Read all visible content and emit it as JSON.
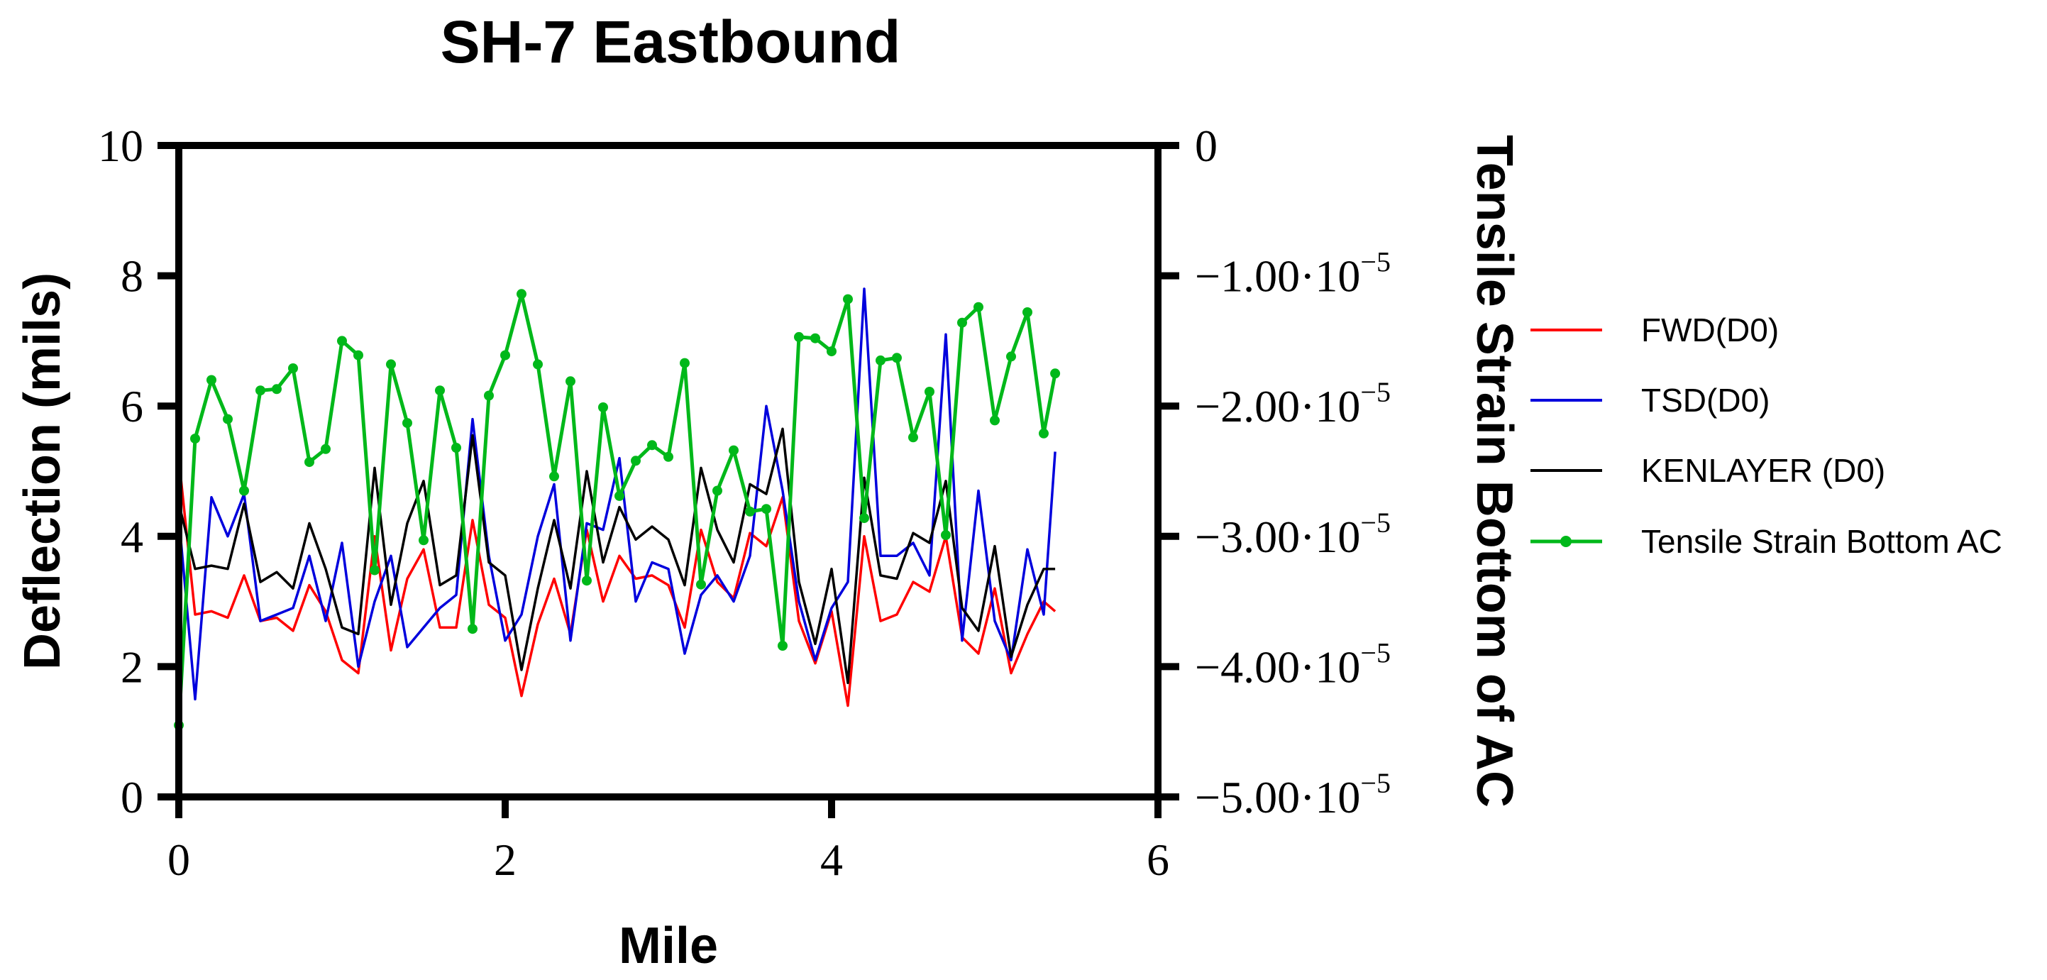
{
  "chart_data": {
    "type": "line",
    "title": "SH-7 Eastbound",
    "xlabel": "Mile",
    "ylabel": "Deflection (mils)",
    "y2label": "Tensile Strain Bottom of AC",
    "xlim": [
      0,
      6
    ],
    "ylim": [
      0,
      10
    ],
    "y2lim": [
      -5e-05,
      0
    ],
    "x_ticks": [
      "0",
      "2",
      "4",
      "6"
    ],
    "y_ticks": [
      "0",
      "2",
      "4",
      "6",
      "8",
      "10"
    ],
    "y2_ticks": [
      {
        "value": 0,
        "mant": "0",
        "exp": ""
      },
      {
        "value": -1e-05,
        "mant": "−1.00·10",
        "exp": "−5"
      },
      {
        "value": -2e-05,
        "mant": "−2.00·10",
        "exp": "−5"
      },
      {
        "value": -3e-05,
        "mant": "−3.00·10",
        "exp": "−5"
      },
      {
        "value": -4e-05,
        "mant": "−4.00·10",
        "exp": "−5"
      },
      {
        "value": -5e-05,
        "mant": "−5.00·10",
        "exp": "−5"
      }
    ],
    "grid": false,
    "legend_position": "right",
    "x": [
      0,
      0.1,
      0.2,
      0.3,
      0.4,
      0.5,
      0.6,
      0.7,
      0.8,
      0.9,
      1.0,
      1.1,
      1.2,
      1.3,
      1.4,
      1.5,
      1.6,
      1.7,
      1.8,
      1.9,
      2.0,
      2.1,
      2.2,
      2.3,
      2.4,
      2.5,
      2.6,
      2.7,
      2.8,
      2.9,
      3.0,
      3.1,
      3.2,
      3.3,
      3.4,
      3.5,
      3.6,
      3.7,
      3.8,
      3.9,
      4.0,
      4.1,
      4.2,
      4.3,
      4.4,
      4.5,
      4.6,
      4.7,
      4.8,
      4.9,
      5.0,
      5.1,
      5.2,
      5.3,
      5.37
    ],
    "series": [
      {
        "name": "FWD(D0)",
        "axis": "left",
        "color": "#ff0000",
        "markers": false,
        "values": [
          5.2,
          2.8,
          2.85,
          2.75,
          3.4,
          2.7,
          2.75,
          2.55,
          3.25,
          2.85,
          2.1,
          1.9,
          4.0,
          2.25,
          3.35,
          3.8,
          2.6,
          2.6,
          4.25,
          2.95,
          2.75,
          1.55,
          2.65,
          3.35,
          2.5,
          4.1,
          3.0,
          3.7,
          3.35,
          3.4,
          3.25,
          2.6,
          4.1,
          3.3,
          3.05,
          4.05,
          3.85,
          4.6,
          2.7,
          2.05,
          2.85,
          1.4,
          4.0,
          2.7,
          2.8,
          3.3,
          3.15,
          4.0,
          2.45,
          2.2,
          3.2,
          1.9,
          2.5,
          3.0,
          2.85
        ]
      },
      {
        "name": "TSD(D0)",
        "axis": "left",
        "color": "#0000dd",
        "markers": false,
        "values": [
          4.3,
          1.5,
          4.6,
          4.0,
          4.65,
          2.7,
          2.8,
          2.9,
          3.7,
          2.7,
          3.9,
          2.0,
          3.0,
          3.7,
          2.3,
          2.6,
          2.9,
          3.1,
          5.8,
          3.7,
          2.4,
          2.8,
          4.0,
          4.8,
          2.4,
          4.2,
          4.1,
          5.2,
          3.0,
          3.6,
          3.5,
          2.2,
          3.1,
          3.4,
          3.0,
          3.7,
          6.0,
          4.7,
          3.0,
          2.1,
          2.9,
          3.3,
          7.8,
          3.7,
          3.7,
          3.9,
          3.4,
          7.1,
          2.4,
          4.7,
          2.7,
          2.1,
          3.8,
          2.8,
          5.3
        ]
      },
      {
        "name": "KENLAYER (D0)",
        "axis": "left",
        "color": "#000000",
        "markers": false,
        "values": [
          4.5,
          3.5,
          3.55,
          3.5,
          4.5,
          3.3,
          3.45,
          3.2,
          4.2,
          3.5,
          2.6,
          2.5,
          5.05,
          2.95,
          4.2,
          4.85,
          3.25,
          3.4,
          5.55,
          3.6,
          3.4,
          1.95,
          3.2,
          4.25,
          3.2,
          5.0,
          3.6,
          4.45,
          3.95,
          4.15,
          3.95,
          3.25,
          5.05,
          4.1,
          3.6,
          4.8,
          4.65,
          5.65,
          3.3,
          2.35,
          3.5,
          1.75,
          4.9,
          3.4,
          3.35,
          4.05,
          3.9,
          4.85,
          2.9,
          2.55,
          3.85,
          2.15,
          2.95,
          3.5,
          3.5
        ]
      },
      {
        "name": "Tensile Strain Bottom AC",
        "axis": "right",
        "color": "#00b81a",
        "markers": true,
        "values": [
          -4.45e-05,
          -2.25e-05,
          -1.8e-05,
          -2.1e-05,
          -2.65e-05,
          -1.88e-05,
          -1.87e-05,
          -1.71e-05,
          -2.43e-05,
          -2.33e-05,
          -1.5e-05,
          -1.61e-05,
          -3.26e-05,
          -1.68e-05,
          -2.13e-05,
          -3.03e-05,
          -1.88e-05,
          -2.32e-05,
          -3.71e-05,
          -1.92e-05,
          -1.61e-05,
          -1.14e-05,
          -1.68e-05,
          -2.54e-05,
          -1.81e-05,
          -3.34e-05,
          -2.01e-05,
          -2.69e-05,
          -2.42e-05,
          -2.3e-05,
          -2.39e-05,
          -1.67e-05,
          -3.37e-05,
          -2.65e-05,
          -2.34e-05,
          -2.81e-05,
          -2.79e-05,
          -3.84e-05,
          -1.47e-05,
          -1.48e-05,
          -1.58e-05,
          -1.18e-05,
          -2.86e-05,
          -1.65e-05,
          -1.63e-05,
          -2.24e-05,
          -1.89e-05,
          -2.99e-05,
          -1.36e-05,
          -1.24e-05,
          -2.11e-05,
          -1.62e-05,
          -1.28e-05,
          -2.21e-05,
          -1.75e-05
        ]
      }
    ]
  }
}
